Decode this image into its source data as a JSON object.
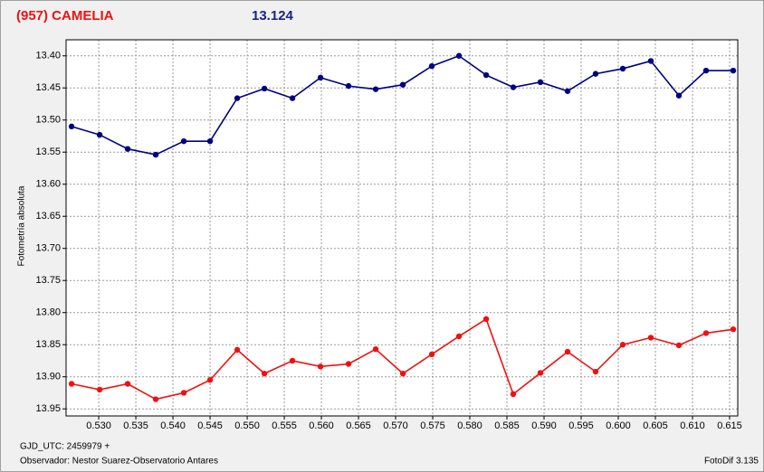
{
  "chart_data": {
    "type": "line",
    "title": "(957) CAMELIA",
    "subtitle": "13.124",
    "ylabel": "Fotometría absoluta",
    "annotations": [
      "GJD_UTC: 2459979 +",
      "Observador: Nestor Suarez-Observatorio Antares",
      "FotoDif 3.135"
    ],
    "x": [
      0.52634,
      0.53012,
      0.5339,
      0.53768,
      0.54146,
      0.545,
      0.54866,
      0.55232,
      0.5561,
      0.55988,
      0.56366,
      0.56732,
      0.57098,
      0.57488,
      0.57854,
      0.5822,
      0.58585,
      0.58951,
      0.59317,
      0.59695,
      0.60061,
      0.60439,
      0.60817,
      0.61183,
      0.61549
    ],
    "series": [
      {
        "color": "#000080",
        "values": [
          13.51,
          13.523,
          13.545,
          13.554,
          13.533,
          13.533,
          13.466,
          13.451,
          13.466,
          13.434,
          13.447,
          13.452,
          13.445,
          13.416,
          13.4,
          13.43,
          13.449,
          13.441,
          13.455,
          13.428,
          13.42,
          13.408,
          13.462,
          13.423,
          13.423
        ]
      },
      {
        "color": "#ee1111",
        "values": [
          13.911,
          13.92,
          13.911,
          13.935,
          13.925,
          13.905,
          13.858,
          13.895,
          13.875,
          13.884,
          13.88,
          13.857,
          13.895,
          13.865,
          13.837,
          13.81,
          13.927,
          13.894,
          13.861,
          13.892,
          13.85,
          13.839,
          13.851,
          13.832,
          13.826
        ]
      }
    ],
    "xlim": [
      0.5256,
      0.6161
    ],
    "xticks": [
      {
        "value": 0.53,
        "label": "0.530"
      },
      {
        "value": 0.535,
        "label": "0.535"
      },
      {
        "value": 0.54,
        "label": "0.540"
      },
      {
        "value": 0.545,
        "label": "0.545"
      },
      {
        "value": 0.55,
        "label": "0.550"
      },
      {
        "value": 0.555,
        "label": "0.555"
      },
      {
        "value": 0.56,
        "label": "0.560"
      },
      {
        "value": 0.565,
        "label": "0.565"
      },
      {
        "value": 0.57,
        "label": "0.570"
      },
      {
        "value": 0.575,
        "label": "0.575"
      },
      {
        "value": 0.58,
        "label": "0.580"
      },
      {
        "value": 0.585,
        "label": "0.585"
      },
      {
        "value": 0.59,
        "label": "0.590"
      },
      {
        "value": 0.595,
        "label": "0.595"
      },
      {
        "value": 0.6,
        "label": "0.600"
      },
      {
        "value": 0.605,
        "label": "0.605"
      },
      {
        "value": 0.61,
        "label": "0.610"
      },
      {
        "value": 0.615,
        "label": "0.615"
      }
    ],
    "ylim": [
      13.961,
      13.375
    ],
    "yticks": [
      {
        "value": 13.4,
        "label": "13.40"
      },
      13.45,
      {
        "value": 13.5,
        "label": "13.50"
      },
      13.55,
      {
        "value": 13.6,
        "label": "13.60"
      },
      13.65,
      {
        "value": 13.7,
        "label": "13.70"
      },
      13.75,
      {
        "value": 13.8,
        "label": "13.80"
      },
      13.85,
      {
        "value": 13.9,
        "label": "13.90"
      },
      13.95
    ],
    "grid": true
  }
}
